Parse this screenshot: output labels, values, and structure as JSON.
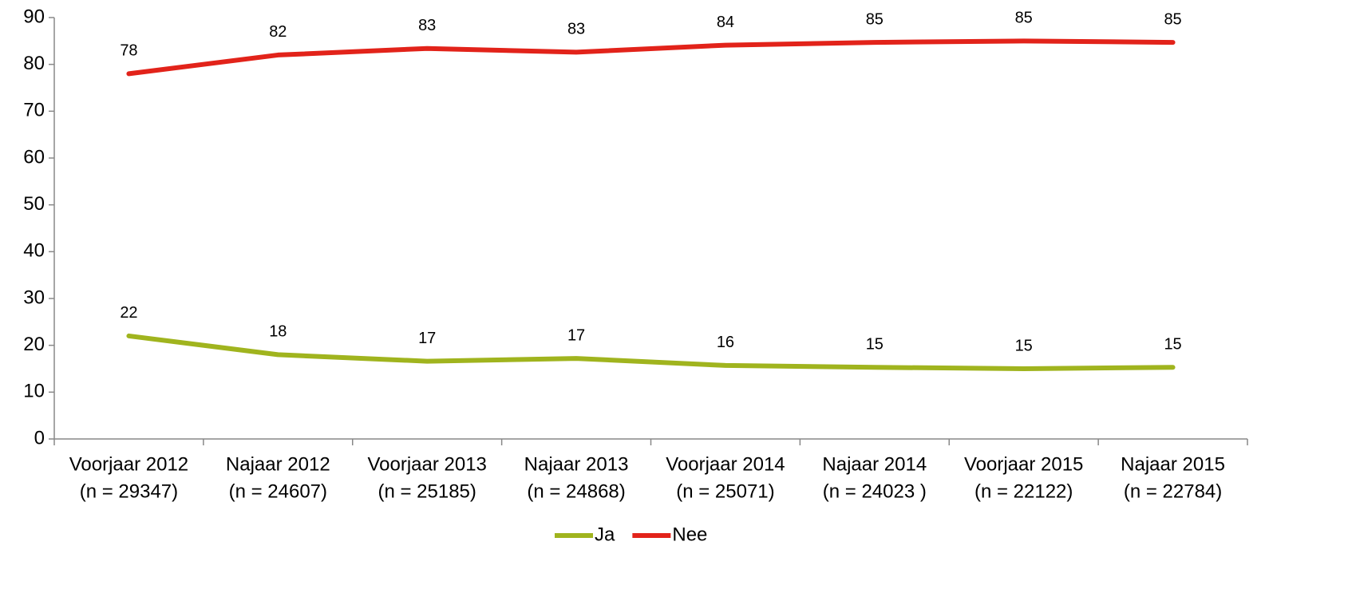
{
  "chart_data": {
    "type": "line",
    "categories": [
      [
        "Voorjaar 2012",
        "(n = 29347)"
      ],
      [
        "Najaar 2012",
        "(n = 24607)"
      ],
      [
        "Voorjaar 2013",
        "(n = 25185)"
      ],
      [
        "Najaar 2013",
        "(n = 24868)"
      ],
      [
        "Voorjaar 2014",
        "(n = 25071)"
      ],
      [
        "Najaar 2014",
        "(n = 24023 )"
      ],
      [
        "Voorjaar 2015",
        "(n = 22122)"
      ],
      [
        "Najaar 2015",
        "(n = 22784)"
      ]
    ],
    "series": [
      {
        "name": "Ja",
        "color": "#a0b41e",
        "values": [
          22,
          18,
          16.6,
          17.2,
          15.7,
          15.3,
          15.0,
          15.3
        ],
        "value_labels": [
          "22",
          "18",
          "17",
          "17",
          "16",
          "15",
          "15",
          "15"
        ]
      },
      {
        "name": "Nee",
        "color": "#e2231a",
        "values": [
          78,
          82,
          83.4,
          82.6,
          84.1,
          84.7,
          85,
          84.7
        ],
        "value_labels": [
          "78",
          "82",
          "83",
          "83",
          "84",
          "85",
          "85",
          "85"
        ]
      }
    ],
    "ylim": [
      0,
      90
    ],
    "yticks": [
      0,
      10,
      20,
      30,
      40,
      50,
      60,
      70,
      80,
      90
    ],
    "grid": false,
    "legend": "bottom"
  }
}
